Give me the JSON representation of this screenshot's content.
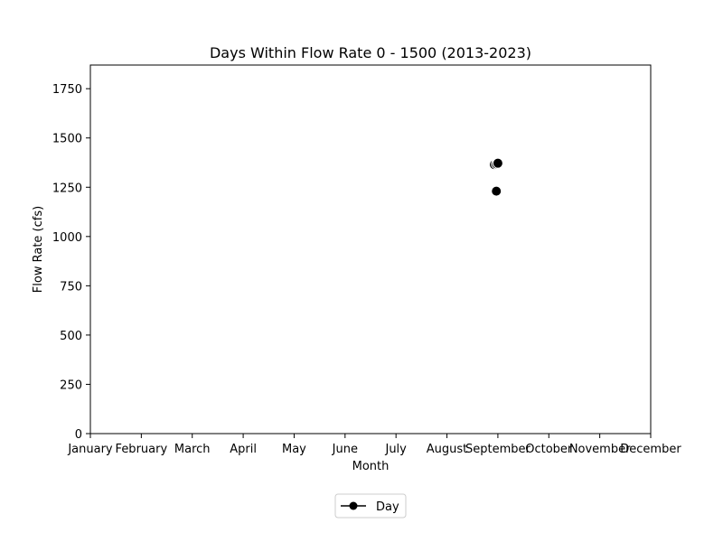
{
  "chart_data": {
    "type": "scatter",
    "title": "Days Within Flow Rate 0 - 1500 (2013-2023)",
    "xlabel": "Month",
    "ylabel": "Flow Rate (cfs)",
    "x_ticks": [
      "January",
      "February",
      "March",
      "April",
      "May",
      "June",
      "July",
      "August",
      "September",
      "October",
      "November",
      "December"
    ],
    "y_ticks": [
      0,
      250,
      500,
      750,
      1000,
      1250,
      1500,
      1750
    ],
    "xlim": [
      1,
      12
    ],
    "ylim": [
      0,
      1870
    ],
    "grid": false,
    "legend_position": "bottom-center",
    "series": [
      {
        "name": "Day",
        "color": "#000000",
        "points": [
          {
            "x": 8.93,
            "y": 1365
          },
          {
            "x": 8.97,
            "y": 1368
          },
          {
            "x": 9.0,
            "y": 1372
          },
          {
            "x": 8.97,
            "y": 1230
          }
        ]
      }
    ]
  }
}
